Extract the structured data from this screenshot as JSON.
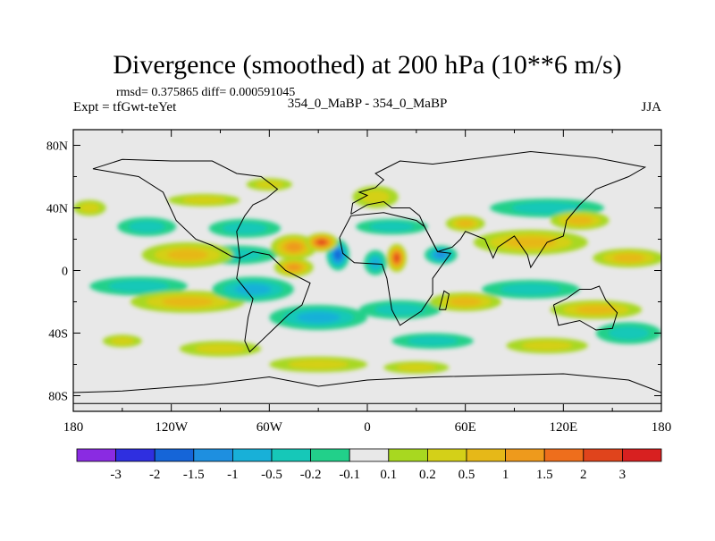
{
  "title": "Divergence (smoothed) at 200 hPa (10**6 m/s)",
  "stats_line": "rmsd= 0.375865 diff= 0.000591045",
  "expt_label": "Expt = tfGwt-teYet",
  "case_label": "354_0_MaBP - 354_0_MaBP",
  "season_label": "JJA",
  "chart_data": {
    "type": "heatmap",
    "variable": "Divergence (smoothed)",
    "level": "200 hPa",
    "units": "10**6 m/s",
    "projection": "cylindrical equidistant",
    "xlim": [
      -180,
      180
    ],
    "ylim": [
      -90,
      90
    ],
    "x_ticks": [
      {
        "value": -180,
        "label": "180"
      },
      {
        "value": -120,
        "label": "120W"
      },
      {
        "value": -60,
        "label": "60W"
      },
      {
        "value": 0,
        "label": "0"
      },
      {
        "value": 60,
        "label": "60E"
      },
      {
        "value": 120,
        "label": "120E"
      },
      {
        "value": 180,
        "label": "180"
      }
    ],
    "y_ticks": [
      {
        "value": 80,
        "label": "80N"
      },
      {
        "value": 40,
        "label": "40N"
      },
      {
        "value": 0,
        "label": "0"
      },
      {
        "value": -40,
        "label": "40S"
      },
      {
        "value": -80,
        "label": "80S"
      }
    ],
    "colorbar": {
      "levels": [
        "-3",
        "-2",
        "-1.5",
        "-1",
        "-0.5",
        "-0.2",
        "-0.1",
        "0.1",
        "0.2",
        "0.5",
        "1",
        "1.5",
        "2",
        "3"
      ],
      "colors": [
        "#8a2be2",
        "#2f2fe0",
        "#1565d8",
        "#1e8fe0",
        "#18b0d8",
        "#16c8b8",
        "#22d08a",
        "#e8e8e8",
        "#a8d820",
        "#d4d018",
        "#e6b818",
        "#ee9a1c",
        "#ee6e1c",
        "#e0441c",
        "#d82020"
      ]
    },
    "field_blobs": [
      {
        "lon": -110,
        "lat": 10,
        "rx": 28,
        "ry": 8,
        "v": 0.6
      },
      {
        "lon": -135,
        "lat": 28,
        "rx": 18,
        "ry": 6,
        "v": -0.4
      },
      {
        "lon": -75,
        "lat": 27,
        "rx": 22,
        "ry": 6,
        "v": -0.4
      },
      {
        "lon": -80,
        "lat": 10,
        "rx": 25,
        "ry": 6,
        "v": -0.5
      },
      {
        "lon": -45,
        "lat": 15,
        "rx": 14,
        "ry": 8,
        "v": 1.3
      },
      {
        "lon": -28,
        "lat": 18,
        "rx": 10,
        "ry": 6,
        "v": 2.1
      },
      {
        "lon": -45,
        "lat": 2,
        "rx": 12,
        "ry": 6,
        "v": 1.0
      },
      {
        "lon": -18,
        "lat": 10,
        "rx": 7,
        "ry": 10,
        "v": -1.8
      },
      {
        "lon": 5,
        "lat": 5,
        "rx": 7,
        "ry": 8,
        "v": -1.0
      },
      {
        "lon": 18,
        "lat": 8,
        "rx": 6,
        "ry": 9,
        "v": 2.6
      },
      {
        "lon": 45,
        "lat": 10,
        "rx": 10,
        "ry": 6,
        "v": -1.2
      },
      {
        "lon": 5,
        "lat": 47,
        "rx": 14,
        "ry": 7,
        "v": 0.4
      },
      {
        "lon": 15,
        "lat": 28,
        "rx": 22,
        "ry": 5,
        "v": -0.4
      },
      {
        "lon": 100,
        "lat": 18,
        "rx": 35,
        "ry": 8,
        "v": 0.7
      },
      {
        "lon": 130,
        "lat": 32,
        "rx": 18,
        "ry": 6,
        "v": 0.6
      },
      {
        "lon": 110,
        "lat": 40,
        "rx": 35,
        "ry": 6,
        "v": -0.4
      },
      {
        "lon": 160,
        "lat": 8,
        "rx": 22,
        "ry": 6,
        "v": 0.5
      },
      {
        "lon": -140,
        "lat": -10,
        "rx": 30,
        "ry": 6,
        "v": -0.5
      },
      {
        "lon": -110,
        "lat": -20,
        "rx": 35,
        "ry": 7,
        "v": 0.5
      },
      {
        "lon": -70,
        "lat": -12,
        "rx": 25,
        "ry": 8,
        "v": -0.7
      },
      {
        "lon": -30,
        "lat": -30,
        "rx": 30,
        "ry": 8,
        "v": -0.6
      },
      {
        "lon": 20,
        "lat": -25,
        "rx": 25,
        "ry": 6,
        "v": -0.5
      },
      {
        "lon": 60,
        "lat": -20,
        "rx": 22,
        "ry": 6,
        "v": 0.6
      },
      {
        "lon": 100,
        "lat": -12,
        "rx": 30,
        "ry": 6,
        "v": -0.5
      },
      {
        "lon": 140,
        "lat": -25,
        "rx": 28,
        "ry": 6,
        "v": 0.5
      },
      {
        "lon": 160,
        "lat": -40,
        "rx": 20,
        "ry": 7,
        "v": -0.4
      },
      {
        "lon": -150,
        "lat": -45,
        "rx": 12,
        "ry": 4,
        "v": 0.3
      },
      {
        "lon": -90,
        "lat": -50,
        "rx": 25,
        "ry": 5,
        "v": 0.4
      },
      {
        "lon": -30,
        "lat": -60,
        "rx": 30,
        "ry": 5,
        "v": 0.4
      },
      {
        "lon": 40,
        "lat": -45,
        "rx": 25,
        "ry": 5,
        "v": -0.3
      },
      {
        "lon": 30,
        "lat": -62,
        "rx": 20,
        "ry": 4,
        "v": 0.3
      },
      {
        "lon": 110,
        "lat": -48,
        "rx": 25,
        "ry": 5,
        "v": 0.3
      },
      {
        "lon": -170,
        "lat": 40,
        "rx": 10,
        "ry": 5,
        "v": 0.3
      },
      {
        "lon": -60,
        "lat": 55,
        "rx": 14,
        "ry": 4,
        "v": 0.3
      },
      {
        "lon": 60,
        "lat": 30,
        "rx": 12,
        "ry": 5,
        "v": 0.5
      },
      {
        "lon": -100,
        "lat": 45,
        "rx": 22,
        "ry": 4,
        "v": 0.3
      }
    ],
    "coastlines": [
      [
        [
          -168,
          65
        ],
        [
          -140,
          60
        ],
        [
          -125,
          50
        ],
        [
          -117,
          32
        ],
        [
          -105,
          20
        ],
        [
          -95,
          16
        ],
        [
          -83,
          9
        ],
        [
          -78,
          8
        ],
        [
          -80,
          25
        ],
        [
          -75,
          35
        ],
        [
          -70,
          42
        ],
        [
          -62,
          46
        ],
        [
          -55,
          52
        ],
        [
          -65,
          60
        ],
        [
          -80,
          62
        ],
        [
          -95,
          70
        ],
        [
          -120,
          70
        ],
        [
          -150,
          71
        ],
        [
          -168,
          65
        ]
      ],
      [
        [
          -78,
          8
        ],
        [
          -70,
          12
        ],
        [
          -60,
          10
        ],
        [
          -50,
          0
        ],
        [
          -35,
          -8
        ],
        [
          -40,
          -22
        ],
        [
          -48,
          -28
        ],
        [
          -58,
          -38
        ],
        [
          -65,
          -45
        ],
        [
          -72,
          -52
        ],
        [
          -75,
          -45
        ],
        [
          -73,
          -30
        ],
        [
          -70,
          -18
        ],
        [
          -80,
          -5
        ],
        [
          -78,
          8
        ]
      ],
      [
        [
          -17,
          21
        ],
        [
          -10,
          35
        ],
        [
          10,
          37
        ],
        [
          30,
          32
        ],
        [
          35,
          28
        ],
        [
          43,
          12
        ],
        [
          51,
          11
        ],
        [
          40,
          -5
        ],
        [
          40,
          -15
        ],
        [
          33,
          -26
        ],
        [
          20,
          -35
        ],
        [
          15,
          -25
        ],
        [
          12,
          -5
        ],
        [
          9,
          4
        ],
        [
          -8,
          5
        ],
        [
          -15,
          11
        ],
        [
          -17,
          21
        ]
      ],
      [
        [
          -10,
          36
        ],
        [
          -9,
          43
        ],
        [
          0,
          48
        ],
        [
          -5,
          50
        ],
        [
          5,
          53
        ],
        [
          10,
          58
        ],
        [
          5,
          62
        ],
        [
          20,
          70
        ],
        [
          40,
          68
        ],
        [
          70,
          72
        ],
        [
          100,
          76
        ],
        [
          140,
          72
        ],
        [
          170,
          66
        ],
        [
          160,
          60
        ],
        [
          140,
          52
        ],
        [
          130,
          42
        ],
        [
          122,
          32
        ],
        [
          120,
          22
        ],
        [
          110,
          18
        ],
        [
          105,
          10
        ],
        [
          100,
          2
        ],
        [
          98,
          10
        ],
        [
          90,
          22
        ],
        [
          80,
          15
        ],
        [
          77,
          8
        ],
        [
          72,
          20
        ],
        [
          60,
          25
        ],
        [
          57,
          20
        ],
        [
          52,
          15
        ],
        [
          43,
          12
        ],
        [
          35,
          28
        ],
        [
          32,
          35
        ],
        [
          26,
          40
        ],
        [
          15,
          40
        ],
        [
          10,
          44
        ],
        [
          0,
          42
        ],
        [
          -10,
          36
        ]
      ],
      [
        [
          114,
          -22
        ],
        [
          122,
          -18
        ],
        [
          130,
          -12
        ],
        [
          137,
          -12
        ],
        [
          142,
          -10
        ],
        [
          146,
          -19
        ],
        [
          153,
          -27
        ],
        [
          150,
          -37
        ],
        [
          140,
          -38
        ],
        [
          130,
          -32
        ],
        [
          117,
          -35
        ],
        [
          114,
          -22
        ]
      ],
      [
        [
          44,
          -25
        ],
        [
          47,
          -13
        ],
        [
          50,
          -15
        ],
        [
          48,
          -25
        ],
        [
          44,
          -25
        ]
      ],
      [
        [
          -180,
          -78
        ],
        [
          -150,
          -77
        ],
        [
          -100,
          -73
        ],
        [
          -60,
          -68
        ],
        [
          -30,
          -74
        ],
        [
          0,
          -70
        ],
        [
          40,
          -68
        ],
        [
          80,
          -67
        ],
        [
          120,
          -66
        ],
        [
          160,
          -70
        ],
        [
          180,
          -78
        ],
        [
          180,
          -85
        ],
        [
          -180,
          -85
        ],
        [
          -180,
          -78
        ]
      ]
    ]
  }
}
